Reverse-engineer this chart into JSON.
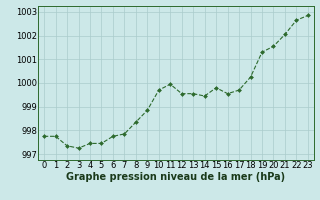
{
  "x": [
    0,
    1,
    2,
    3,
    4,
    5,
    6,
    7,
    8,
    9,
    10,
    11,
    12,
    13,
    14,
    15,
    16,
    17,
    18,
    19,
    20,
    21,
    22,
    23
  ],
  "y": [
    997.75,
    997.75,
    997.35,
    997.25,
    997.45,
    997.45,
    997.75,
    997.85,
    998.35,
    998.85,
    999.7,
    999.95,
    999.55,
    999.55,
    999.45,
    999.8,
    999.55,
    999.7,
    1000.25,
    1001.3,
    1001.55,
    1002.05,
    1002.65,
    1002.85
  ],
  "line_color": "#2d6a2d",
  "marker_color": "#2d6a2d",
  "bg_color": "#cce8e8",
  "grid_color": "#aacccc",
  "xlabel": "Graphe pression niveau de la mer (hPa)",
  "ylim_min": 996.75,
  "ylim_max": 1003.25,
  "xlim_min": -0.5,
  "xlim_max": 23.5,
  "yticks": [
    997,
    998,
    999,
    1000,
    1001,
    1002,
    1003
  ],
  "xticks": [
    0,
    1,
    2,
    3,
    4,
    5,
    6,
    7,
    8,
    9,
    10,
    11,
    12,
    13,
    14,
    15,
    16,
    17,
    18,
    19,
    20,
    21,
    22,
    23
  ],
  "xlabel_fontsize": 7.0,
  "tick_fontsize": 6.0
}
